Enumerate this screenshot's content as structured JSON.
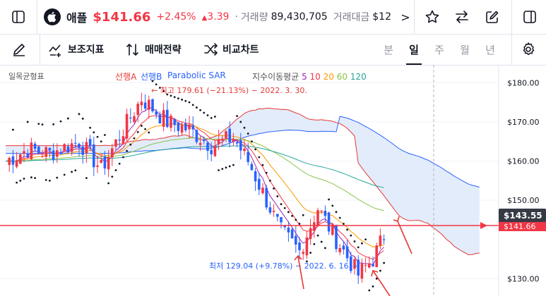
{
  "header": {
    "name": "애플",
    "price": "$141.66",
    "change_pct": "+2.45%",
    "change_abs": "3.39",
    "volume_label": "거래량",
    "volume": "89,430,705",
    "amount_label": "거래대금",
    "amount": "$12",
    "more": ">"
  },
  "toolbar": {
    "aux_indicator": "보조지표",
    "trade_strategy": "매매전략",
    "compare_chart": "비교차트",
    "periods": [
      "분",
      "일",
      "주",
      "월",
      "년"
    ],
    "active_period": "일"
  },
  "indicators": {
    "ichimoku": "일목균형표",
    "senkou_a": "선행A",
    "senkou_b": "선행B",
    "psar": "Parabolic SAR",
    "ma_label": "지수이동평균",
    "ma_periods": [
      "5",
      "10",
      "20",
      "60",
      "120"
    ]
  },
  "annotations": {
    "high": "← 최고 179.61 (−21.13%) − 2022. 3. 30.",
    "low": "최저 129.04 (+9.78%) − 2022. 6. 16. →"
  },
  "axis": {
    "ticks": [
      "$180.00",
      "$170.00",
      "$160.00",
      "$150.00",
      "$130.00"
    ],
    "current_price": "$143.55",
    "hidden_price": "$141.66"
  },
  "colors": {
    "up": "#f23645",
    "down": "#2962ff",
    "senkou_a": "#e53935",
    "senkou_b": "#2962ff",
    "cloud": "#e3ecfb",
    "ma5": "#9c27b0",
    "ma10": "#f23645",
    "ma20": "#ff9800",
    "ma60": "#8bc34a",
    "ma120": "#26a69a"
  },
  "chart_data": {
    "type": "candlestick",
    "ylim": [
      127,
      186
    ],
    "current_price": 143.55,
    "high_point": 179.61,
    "low_point": 129.04
  }
}
